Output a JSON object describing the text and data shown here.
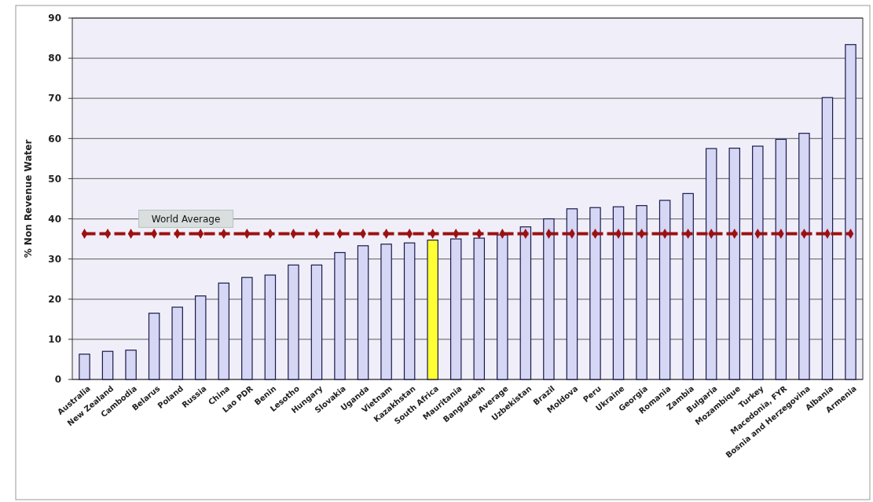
{
  "chart_data": {
    "type": "bar",
    "ylabel": "% Non Revenue Water",
    "categories": [
      "Australia",
      "New Zealand",
      "Cambodia",
      "Belarus",
      "Poland",
      "Russia",
      "China",
      "Lao PDR",
      "Benin",
      "Lesotho",
      "Hungary",
      "Slovakia",
      "Uganda",
      "Vietnam",
      "Kazakhstan",
      "South Africa",
      "Mauritania",
      "Bangladesh",
      "Average",
      "Uzbekistan",
      "Brazil",
      "Moldova",
      "Peru",
      "Ukraine",
      "Georgia",
      "Romania",
      "Zambia",
      "Bulgaria",
      "Mozambique",
      "Turkey",
      "Macedonia, FYR",
      "Bosnia and Herzegovina",
      "Albania",
      "Armenia"
    ],
    "series": [
      {
        "values": [
          6.3,
          7,
          7.3,
          16.5,
          18,
          20.8,
          24,
          25.4,
          26,
          28.5,
          28.5,
          31.6,
          33.3,
          33.7,
          34,
          34.7,
          35,
          35.2,
          36,
          38,
          40,
          42.5,
          42.8,
          43,
          43.3,
          44.6,
          46.3,
          57.5,
          57.6,
          58.1,
          59.8,
          61.3,
          70.2,
          83.4
        ],
        "colors": [
          "#d6d6f5",
          "#d6d6f5",
          "#d6d6f5",
          "#d6d6f5",
          "#d6d6f5",
          "#d6d6f5",
          "#d6d6f5",
          "#d6d6f5",
          "#d6d6f5",
          "#d6d6f5",
          "#d6d6f5",
          "#d6d6f5",
          "#d6d6f5",
          "#d6d6f5",
          "#d6d6f5",
          "#ffff33",
          "#d6d6f5",
          "#d6d6f5",
          "#d6d6f5",
          "#d6d6f5",
          "#d6d6f5",
          "#d6d6f5",
          "#d6d6f5",
          "#d6d6f5",
          "#d6d6f5",
          "#d6d6f5",
          "#d6d6f5",
          "#d6d6f5",
          "#d6d6f5",
          "#d6d6f5",
          "#d6d6f5",
          "#d6d6f5",
          "#d6d6f5",
          "#d6d6f5"
        ]
      },
      {
        "type": "line",
        "name": "World Average",
        "color": "#9b1111",
        "marker": "diamond",
        "line_style": "dashed",
        "values": [
          36.3,
          36.3,
          36.3,
          36.3,
          36.3,
          36.3,
          36.3,
          36.3,
          36.3,
          36.3,
          36.3,
          36.3,
          36.3,
          36.3,
          36.3,
          36.3,
          36.3,
          36.3,
          36.3,
          36.3,
          36.3,
          36.3,
          36.3,
          36.3,
          36.3,
          36.3,
          36.3,
          36.3,
          36.3,
          36.3,
          36.3,
          36.3,
          36.3,
          36.3
        ]
      }
    ],
    "ylim": [
      0,
      90
    ],
    "yticks": [
      0,
      10,
      20,
      30,
      40,
      50,
      60,
      70,
      80,
      90
    ],
    "grid": "y"
  }
}
